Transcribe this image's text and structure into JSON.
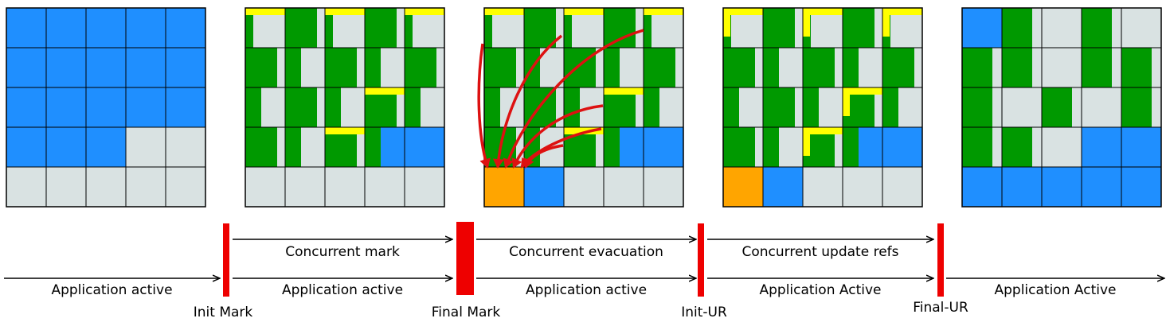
{
  "colors": {
    "free": "#d9e2e2",
    "allocated": "#1f8fff",
    "live": "#009900",
    "garbage_marker": "#ffff00",
    "evacuated": "#ffa500",
    "pause": "#ee0000",
    "grid": "#000000",
    "arrow": "#dd1111"
  },
  "timeline": {
    "concurrent_labels": [
      "Concurrent mark",
      "Concurrent evacuation",
      "Concurrent update refs"
    ],
    "app_labels": [
      "Application active",
      "Application active",
      "Application active",
      "Application Active",
      "Application Active"
    ],
    "pauses": [
      "Init Mark",
      "Final Mark",
      "Init-UR",
      "Final-UR"
    ]
  },
  "heaps": [
    {
      "rows": [
        [
          "B",
          "B",
          "B",
          "B",
          "B"
        ],
        [
          "B",
          "B",
          "B",
          "B",
          "B"
        ],
        [
          "B",
          "B",
          "B",
          "B",
          "B"
        ],
        [
          "B",
          "B",
          "B",
          "E",
          "E"
        ],
        [
          "E",
          "E",
          "E",
          "E",
          "E"
        ]
      ]
    },
    {
      "rows": [
        [
          "M",
          "M",
          "M",
          "M",
          "M"
        ],
        [
          "M",
          "M",
          "M",
          "M",
          "M"
        ],
        [
          "M",
          "M",
          "M",
          "M",
          "M"
        ],
        [
          "M",
          "M",
          "M",
          "B",
          "B"
        ],
        [
          "E",
          "E",
          "E",
          "E",
          "E"
        ]
      ]
    },
    {
      "rows": [
        [
          "M",
          "M",
          "M",
          "M",
          "M"
        ],
        [
          "M",
          "M",
          "M",
          "M",
          "M"
        ],
        [
          "M",
          "M",
          "M",
          "M",
          "M"
        ],
        [
          "M",
          "M",
          "M",
          "B",
          "B"
        ],
        [
          "O",
          "B",
          "E",
          "E",
          "E"
        ]
      ]
    },
    {
      "rows": [
        [
          "M",
          "M",
          "M",
          "M",
          "M"
        ],
        [
          "M",
          "M",
          "M",
          "M",
          "M"
        ],
        [
          "M",
          "M",
          "M",
          "M",
          "M"
        ],
        [
          "M",
          "M",
          "M",
          "B",
          "B"
        ],
        [
          "O",
          "B",
          "E",
          "E",
          "E"
        ]
      ]
    },
    {
      "rows": [
        [
          "B",
          "M",
          "E",
          "M",
          "E"
        ],
        [
          "M",
          "M",
          "E",
          "M",
          "M"
        ],
        [
          "M",
          "E",
          "M",
          "E",
          "M"
        ],
        [
          "M",
          "M",
          "E",
          "B",
          "B"
        ],
        [
          "B",
          "B",
          "B",
          "B",
          "B"
        ]
      ]
    }
  ]
}
